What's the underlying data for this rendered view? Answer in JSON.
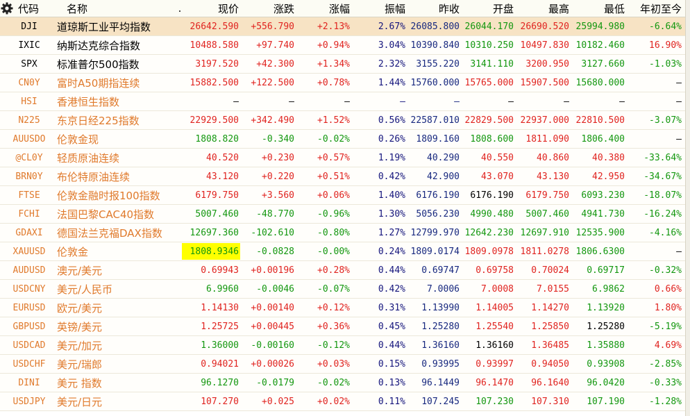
{
  "colors": {
    "up": "#e0231f",
    "down": "#13970f",
    "flat": "#000000",
    "amplitude": "#14147c",
    "prev_close": "#17287f",
    "code_orange": "#e07a2c",
    "code_black": "#000000",
    "selected_row_bg": "#f7e3c4",
    "highlight": "#ffff00"
  },
  "header": {
    "settings_icon": "gear-icon",
    "code": "代码",
    "name": "名称",
    "sort_mark": ".",
    "price": "现价",
    "change": "涨跌",
    "change_pct": "涨幅",
    "amplitude": "振幅",
    "prev_close": "昨收",
    "open": "开盘",
    "high": "最高",
    "low": "最低",
    "ytd": "年初至今"
  },
  "rows": [
    {
      "code": "DJI",
      "name": "道琼斯工业平均指数",
      "price": "26642.590",
      "change": "+556.790",
      "change_pct": "+2.13%",
      "amplitude": "2.67%",
      "prev_close": "26085.800",
      "open": "26044.170",
      "high": "26690.520",
      "low": "25994.980",
      "ytd": "-6.64%",
      "code_color": "black",
      "name_color": "black",
      "price_dir": "up",
      "change_dir": "up",
      "pct_dir": "up",
      "open_dir": "down",
      "high_dir": "up",
      "low_dir": "down",
      "ytd_dir": "down",
      "selected": true
    },
    {
      "code": "IXIC",
      "name": "纳斯达克综合指数",
      "price": "10488.580",
      "change": "+97.740",
      "change_pct": "+0.94%",
      "amplitude": "3.04%",
      "prev_close": "10390.840",
      "open": "10310.250",
      "high": "10497.830",
      "low": "10182.460",
      "ytd": "16.90%",
      "code_color": "black",
      "name_color": "black",
      "price_dir": "up",
      "change_dir": "up",
      "pct_dir": "up",
      "open_dir": "down",
      "high_dir": "up",
      "low_dir": "down",
      "ytd_dir": "up"
    },
    {
      "code": "SPX",
      "name": "标准普尔500指数",
      "price": "3197.520",
      "change": "+42.300",
      "change_pct": "+1.34%",
      "amplitude": "2.32%",
      "prev_close": "3155.220",
      "open": "3141.110",
      "high": "3200.950",
      "low": "3127.660",
      "ytd": "-1.03%",
      "code_color": "black",
      "name_color": "black",
      "price_dir": "up",
      "change_dir": "up",
      "pct_dir": "up",
      "open_dir": "down",
      "high_dir": "up",
      "low_dir": "down",
      "ytd_dir": "down"
    },
    {
      "code": "CN0Y",
      "name": "富时A50期指连续",
      "price": "15882.500",
      "change": "+122.500",
      "change_pct": "+0.78%",
      "amplitude": "1.44%",
      "prev_close": "15760.000",
      "open": "15765.000",
      "high": "15907.500",
      "low": "15680.000",
      "ytd": "–",
      "code_color": "orange",
      "name_color": "orange",
      "price_dir": "up",
      "change_dir": "up",
      "pct_dir": "up",
      "open_dir": "up",
      "high_dir": "up",
      "low_dir": "down",
      "ytd_dir": "flat"
    },
    {
      "code": "HSI",
      "name": "香港恒生指数",
      "price": "–",
      "change": "–",
      "change_pct": "–",
      "amplitude": "–",
      "prev_close": "–",
      "open": "–",
      "high": "–",
      "low": "–",
      "ytd": "–",
      "code_color": "orange",
      "name_color": "orange",
      "price_dir": "flat",
      "change_dir": "flat",
      "pct_dir": "flat",
      "open_dir": "flat",
      "high_dir": "flat",
      "low_dir": "flat",
      "ytd_dir": "flat"
    },
    {
      "code": "N225",
      "name": "东京日经225指数",
      "price": "22929.500",
      "change": "+342.490",
      "change_pct": "+1.52%",
      "amplitude": "0.56%",
      "prev_close": "22587.010",
      "open": "22829.500",
      "high": "22937.000",
      "low": "22810.500",
      "ytd": "-3.07%",
      "code_color": "orange",
      "name_color": "orange",
      "price_dir": "up",
      "change_dir": "up",
      "pct_dir": "up",
      "open_dir": "up",
      "high_dir": "up",
      "low_dir": "up",
      "ytd_dir": "down"
    },
    {
      "code": "AUUSDO",
      "name": "伦敦金现",
      "price": "1808.820",
      "change": "-0.340",
      "change_pct": "-0.02%",
      "amplitude": "0.26%",
      "prev_close": "1809.160",
      "open": "1808.600",
      "high": "1811.090",
      "low": "1806.400",
      "ytd": "–",
      "code_color": "orange",
      "name_color": "orange",
      "price_dir": "down",
      "change_dir": "down",
      "pct_dir": "down",
      "open_dir": "down",
      "high_dir": "up",
      "low_dir": "down",
      "ytd_dir": "flat"
    },
    {
      "code": "@CL0Y",
      "name": "轻质原油连续",
      "price": "40.520",
      "change": "+0.230",
      "change_pct": "+0.57%",
      "amplitude": "1.19%",
      "prev_close": "40.290",
      "open": "40.550",
      "high": "40.860",
      "low": "40.380",
      "ytd": "-33.64%",
      "code_color": "orange",
      "name_color": "orange",
      "price_dir": "up",
      "change_dir": "up",
      "pct_dir": "up",
      "open_dir": "up",
      "high_dir": "up",
      "low_dir": "up",
      "ytd_dir": "down"
    },
    {
      "code": "BRN0Y",
      "name": "布伦特原油连续",
      "price": "43.120",
      "change": "+0.220",
      "change_pct": "+0.51%",
      "amplitude": "0.42%",
      "prev_close": "42.900",
      "open": "43.070",
      "high": "43.130",
      "low": "42.950",
      "ytd": "-34.67%",
      "code_color": "orange",
      "name_color": "orange",
      "price_dir": "up",
      "change_dir": "up",
      "pct_dir": "up",
      "open_dir": "up",
      "high_dir": "up",
      "low_dir": "up",
      "ytd_dir": "down"
    },
    {
      "code": "FTSE",
      "name": "伦敦金融时报100指数",
      "price": "6179.750",
      "change": "+3.560",
      "change_pct": "+0.06%",
      "amplitude": "1.40%",
      "prev_close": "6176.190",
      "open": "6176.190",
      "high": "6179.750",
      "low": "6093.230",
      "ytd": "-18.07%",
      "code_color": "orange",
      "name_color": "orange",
      "price_dir": "up",
      "change_dir": "up",
      "pct_dir": "up",
      "open_dir": "flat",
      "high_dir": "up",
      "low_dir": "down",
      "ytd_dir": "down"
    },
    {
      "code": "FCHI",
      "name": "法国巴黎CAC40指数",
      "price": "5007.460",
      "change": "-48.770",
      "change_pct": "-0.96%",
      "amplitude": "1.30%",
      "prev_close": "5056.230",
      "open": "4990.480",
      "high": "5007.460",
      "low": "4941.730",
      "ytd": "-16.24%",
      "code_color": "orange",
      "name_color": "orange",
      "price_dir": "down",
      "change_dir": "down",
      "pct_dir": "down",
      "open_dir": "down",
      "high_dir": "down",
      "low_dir": "down",
      "ytd_dir": "down"
    },
    {
      "code": "GDAXI",
      "name": "德国法兰克福DAX指数",
      "price": "12697.360",
      "change": "-102.610",
      "change_pct": "-0.80%",
      "amplitude": "1.27%",
      "prev_close": "12799.970",
      "open": "12642.230",
      "high": "12697.910",
      "low": "12535.900",
      "ytd": "-4.16%",
      "code_color": "orange",
      "name_color": "orange",
      "price_dir": "down",
      "change_dir": "down",
      "pct_dir": "down",
      "open_dir": "down",
      "high_dir": "down",
      "low_dir": "down",
      "ytd_dir": "down"
    },
    {
      "code": "XAUUSD",
      "name": "伦敦金",
      "price": "1808.9346",
      "change": "-0.0828",
      "change_pct": "-0.00%",
      "amplitude": "0.24%",
      "prev_close": "1809.0174",
      "open": "1809.0978",
      "high": "1811.0278",
      "low": "1806.6300",
      "ytd": "–",
      "code_color": "orange",
      "name_color": "orange",
      "price_dir": "down",
      "change_dir": "down",
      "pct_dir": "down",
      "open_dir": "up",
      "high_dir": "up",
      "low_dir": "down",
      "ytd_dir": "flat",
      "price_highlight": true
    },
    {
      "code": "AUDUSD",
      "name": "澳元/美元",
      "price": "0.69943",
      "change": "+0.00196",
      "change_pct": "+0.28%",
      "amplitude": "0.44%",
      "prev_close": "0.69747",
      "open": "0.69758",
      "high": "0.70024",
      "low": "0.69717",
      "ytd": "-0.32%",
      "code_color": "orange",
      "name_color": "orange",
      "price_dir": "up",
      "change_dir": "up",
      "pct_dir": "up",
      "open_dir": "up",
      "high_dir": "up",
      "low_dir": "down",
      "ytd_dir": "down"
    },
    {
      "code": "USDCNY",
      "name": "美元/人民币",
      "price": "6.9960",
      "change": "-0.0046",
      "change_pct": "-0.07%",
      "amplitude": "0.42%",
      "prev_close": "7.0006",
      "open": "7.0008",
      "high": "7.0155",
      "low": "6.9862",
      "ytd": "0.66%",
      "code_color": "orange",
      "name_color": "orange",
      "price_dir": "down",
      "change_dir": "down",
      "pct_dir": "down",
      "open_dir": "up",
      "high_dir": "up",
      "low_dir": "down",
      "ytd_dir": "up"
    },
    {
      "code": "EURUSD",
      "name": "欧元/美元",
      "price": "1.14130",
      "change": "+0.00140",
      "change_pct": "+0.12%",
      "amplitude": "0.31%",
      "prev_close": "1.13990",
      "open": "1.14005",
      "high": "1.14270",
      "low": "1.13920",
      "ytd": "1.80%",
      "code_color": "orange",
      "name_color": "orange",
      "price_dir": "up",
      "change_dir": "up",
      "pct_dir": "up",
      "open_dir": "up",
      "high_dir": "up",
      "low_dir": "down",
      "ytd_dir": "up"
    },
    {
      "code": "GBPUSD",
      "name": "英镑/美元",
      "price": "1.25725",
      "change": "+0.00445",
      "change_pct": "+0.36%",
      "amplitude": "0.45%",
      "prev_close": "1.25280",
      "open": "1.25540",
      "high": "1.25850",
      "low": "1.25280",
      "ytd": "-5.19%",
      "code_color": "orange",
      "name_color": "orange",
      "price_dir": "up",
      "change_dir": "up",
      "pct_dir": "up",
      "open_dir": "up",
      "high_dir": "up",
      "low_dir": "flat",
      "ytd_dir": "down"
    },
    {
      "code": "USDCAD",
      "name": "美元/加元",
      "price": "1.36000",
      "change": "-0.00160",
      "change_pct": "-0.12%",
      "amplitude": "0.44%",
      "prev_close": "1.36160",
      "open": "1.36160",
      "high": "1.36485",
      "low": "1.35880",
      "ytd": "4.69%",
      "code_color": "orange",
      "name_color": "orange",
      "price_dir": "down",
      "change_dir": "down",
      "pct_dir": "down",
      "open_dir": "flat",
      "high_dir": "up",
      "low_dir": "down",
      "ytd_dir": "up"
    },
    {
      "code": "USDCHF",
      "name": "美元/瑞郎",
      "price": "0.94021",
      "change": "+0.00026",
      "change_pct": "+0.03%",
      "amplitude": "0.15%",
      "prev_close": "0.93995",
      "open": "0.93997",
      "high": "0.94050",
      "low": "0.93908",
      "ytd": "-2.85%",
      "code_color": "orange",
      "name_color": "orange",
      "price_dir": "up",
      "change_dir": "up",
      "pct_dir": "up",
      "open_dir": "up",
      "high_dir": "up",
      "low_dir": "down",
      "ytd_dir": "down"
    },
    {
      "code": "DINI",
      "name": "美元 指数",
      "price": "96.1270",
      "change": "-0.0179",
      "change_pct": "-0.02%",
      "amplitude": "0.13%",
      "prev_close": "96.1449",
      "open": "96.1470",
      "high": "96.1640",
      "low": "96.0420",
      "ytd": "-0.33%",
      "code_color": "orange",
      "name_color": "orange",
      "price_dir": "down",
      "change_dir": "down",
      "pct_dir": "down",
      "open_dir": "up",
      "high_dir": "up",
      "low_dir": "down",
      "ytd_dir": "down"
    },
    {
      "code": "USDJPY",
      "name": "美元/日元",
      "price": "107.270",
      "change": "+0.025",
      "change_pct": "+0.02%",
      "amplitude": "0.11%",
      "prev_close": "107.245",
      "open": "107.230",
      "high": "107.310",
      "low": "107.190",
      "ytd": "-1.28%",
      "code_color": "orange",
      "name_color": "orange",
      "price_dir": "up",
      "change_dir": "up",
      "pct_dir": "up",
      "open_dir": "down",
      "high_dir": "up",
      "low_dir": "down",
      "ytd_dir": "down"
    }
  ]
}
